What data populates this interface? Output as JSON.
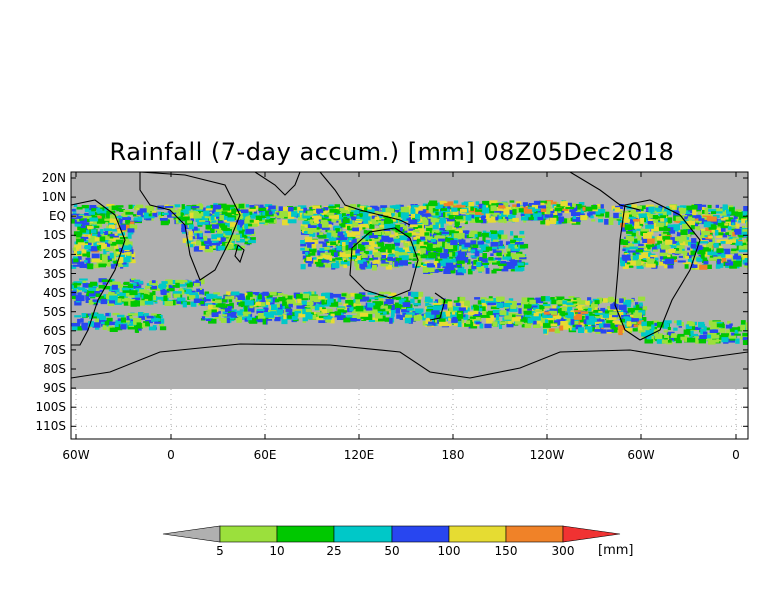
{
  "title": "Rainfall (7-day accum.) [mm] 08Z05Dec2018",
  "lat_labels": [
    "20N",
    "10N",
    "EQ",
    "10S",
    "20S",
    "30S",
    "40S",
    "50S",
    "60S",
    "70S",
    "80S",
    "90S",
    "100S",
    "110S"
  ],
  "lon_labels": [
    "60W",
    "0",
    "60E",
    "120E",
    "180",
    "120W",
    "60W",
    "0"
  ],
  "colorbar": {
    "labels": [
      "5",
      "10",
      "25",
      "50",
      "100",
      "150",
      "300"
    ],
    "unit": "[mm]",
    "colors": [
      "#b0b0b0",
      "#9be03c",
      "#00c800",
      "#00c8c8",
      "#2846f0",
      "#e6dc32",
      "#f08228",
      "#f03232"
    ]
  },
  "colors": {
    "ocean_no_rain": "#b0b0b0",
    "coast": "#000000",
    "grid_dots": "#999999"
  }
}
